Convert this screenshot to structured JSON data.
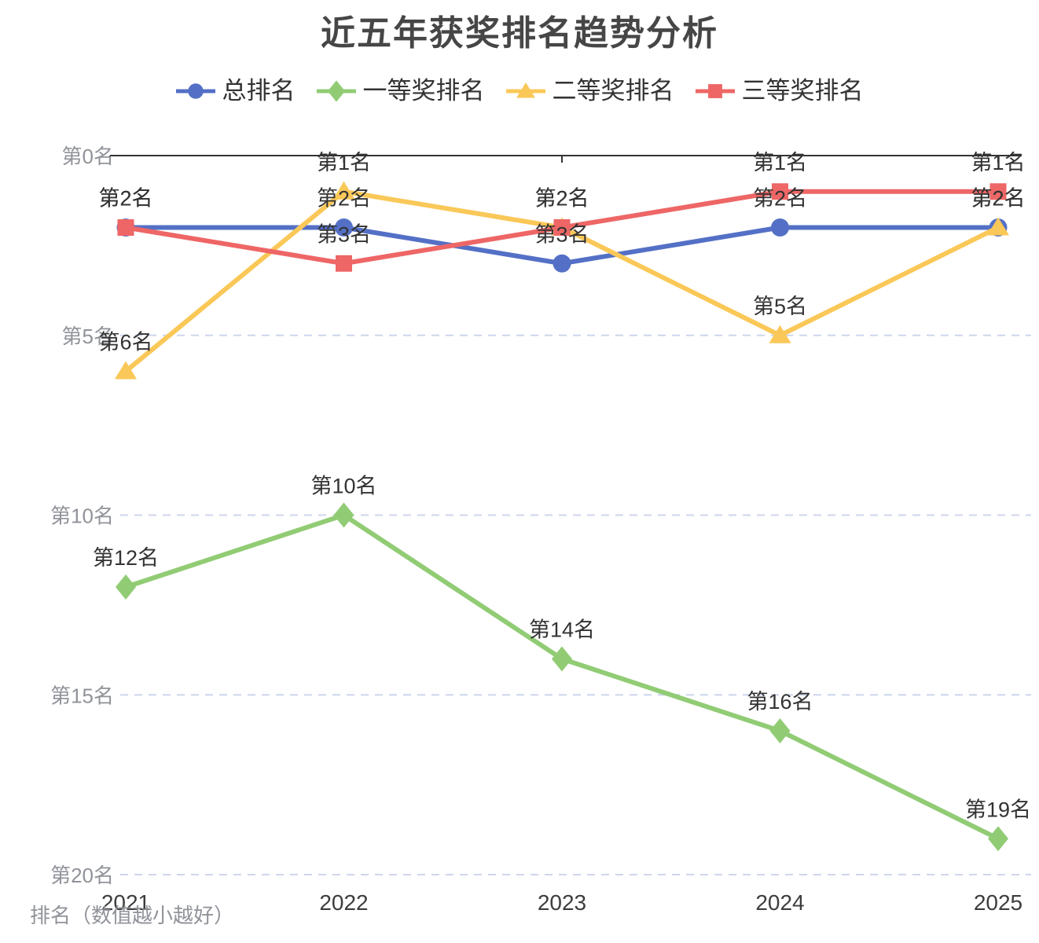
{
  "title": "近五年获奖排名趋势分析",
  "chart_data": {
    "type": "line",
    "title": "近五年获奖排名趋势分析",
    "x": [
      "2021",
      "2022",
      "2023",
      "2024",
      "2025"
    ],
    "xlabel": "",
    "ylabel": "排名（数值越小越好）",
    "y_axis": {
      "name": "排名（数值越小越好）",
      "inverted": true,
      "min": 0,
      "max": 20,
      "ticks": [
        0,
        5,
        10,
        15,
        20
      ],
      "tick_labels": [
        "第0名",
        "第5名",
        "第10名",
        "第15名",
        "第20名"
      ]
    },
    "legend_position": "top",
    "grid": "horizontal-dashed",
    "series": [
      {
        "name": "总排名",
        "color": "#5470C6",
        "symbol": "circle",
        "values": [
          2,
          2,
          3,
          2,
          2
        ],
        "labels": [
          "第2名",
          "第2名",
          "第3名",
          "第2名",
          "第2名"
        ]
      },
      {
        "name": "一等奖排名",
        "color": "#91CC75",
        "symbol": "diamond",
        "values": [
          12,
          10,
          14,
          16,
          19
        ],
        "labels": [
          "第12名",
          "第10名",
          "第14名",
          "第16名",
          "第19名"
        ]
      },
      {
        "name": "二等奖排名",
        "color": "#FAC858",
        "symbol": "triangle",
        "values": [
          6,
          1,
          2,
          5,
          2
        ],
        "labels": [
          "第6名",
          "第1名",
          "第2名",
          "第5名",
          "第2名"
        ]
      },
      {
        "name": "三等奖排名",
        "color": "#EE6666",
        "symbol": "square",
        "values": [
          2,
          3,
          2,
          1,
          1
        ],
        "labels": [
          "第2名",
          "第3名",
          "第2名",
          "第1名",
          "第1名"
        ]
      }
    ]
  },
  "colors": {
    "background": "#ffffff",
    "title": "#464646",
    "axis_line": "#333333",
    "x_tick_label": "#3d3d3d",
    "y_tick_label": "#909399",
    "axis_name": "#909399",
    "data_label": "#333333",
    "gridline": "#cdd6ec"
  }
}
